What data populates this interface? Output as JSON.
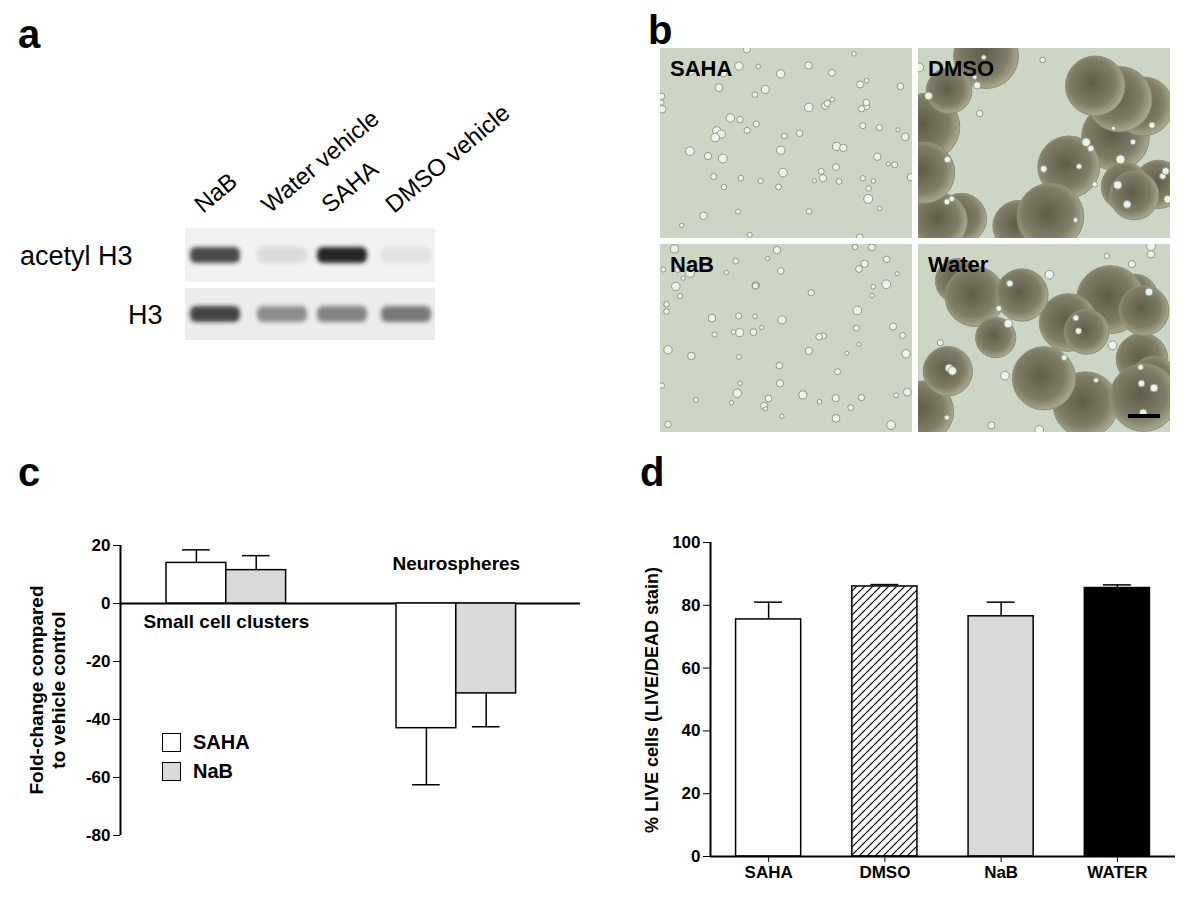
{
  "chart_data": [
    {
      "panel_label": "c",
      "type": "bar",
      "categories": [
        "Small cell clusters",
        "Neurospheres"
      ],
      "series": [
        {
          "name": "SAHA",
          "color": "#ffffff",
          "values": [
            14,
            -43
          ],
          "errors": [
            4.5,
            19.5
          ]
        },
        {
          "name": "NaB",
          "color": "#d9d9d9",
          "values": [
            11.5,
            -31
          ],
          "errors": [
            5,
            11.5
          ]
        }
      ],
      "y_label": "Fold-change compared to vehicle control",
      "ylim": [
        -80,
        20
      ],
      "yticks": [
        -80,
        -60,
        -40,
        -20,
        0,
        20
      ],
      "legend": "left",
      "tick_labels": "y"
    },
    {
      "panel_label": "d",
      "type": "bar",
      "categories": [
        "SAHA",
        "DMSO",
        "NaB",
        "WATER"
      ],
      "values": [
        75.5,
        86,
        76.5,
        85.5
      ],
      "errors": [
        5.5,
        0.6,
        4.5,
        1
      ],
      "colors": [
        "#ffffff",
        "url(#hatch)",
        "#d9d9d9",
        "#000000"
      ],
      "y_label": "% LIVE cells (LIVE/DEAD stain)",
      "ylim": [
        0,
        100
      ],
      "yticks": [
        0,
        20,
        40,
        60,
        80,
        100
      ]
    }
  ],
  "blot": {
    "panel_label": "a",
    "lanes": [
      "NaB",
      "Water vehicle",
      "SAHA",
      "DMSO vehicle"
    ],
    "rows": [
      "acetyl H3",
      "H3"
    ]
  },
  "micrographs": {
    "panel_label": "b",
    "images": [
      "SAHA",
      "DMSO",
      "NaB",
      "Water"
    ]
  }
}
